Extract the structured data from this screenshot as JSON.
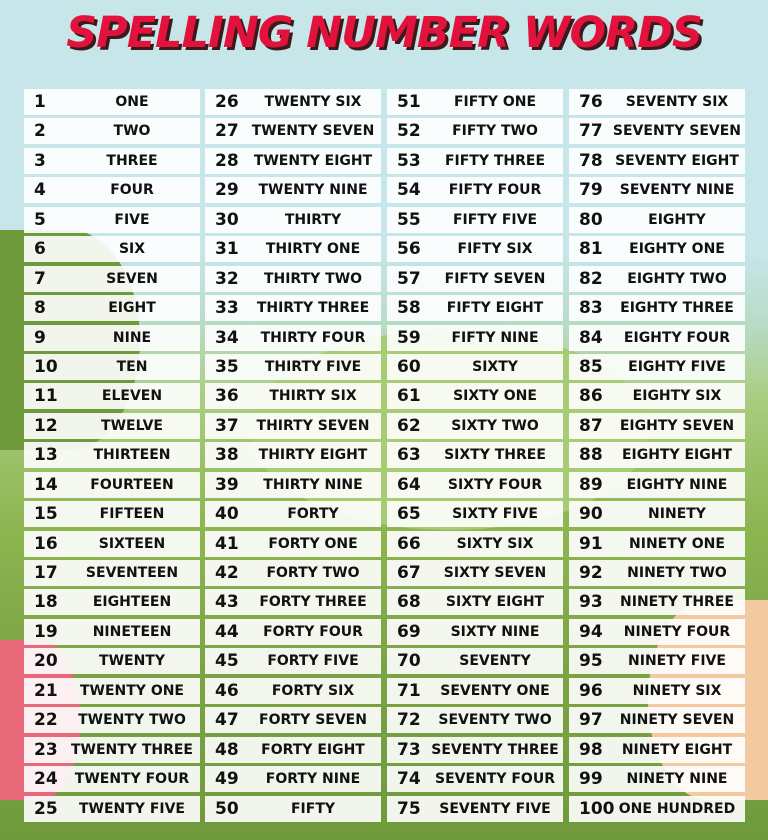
{
  "title": "SPELLING NUMBER WORDS",
  "colors": {
    "title": "#e3123d",
    "sky": "#c6e6e9",
    "grass": "#7ba344",
    "cell": "#ffffff"
  },
  "columns": [
    [
      [
        "1",
        "ONE"
      ],
      [
        "2",
        "TWO"
      ],
      [
        "3",
        "THREE"
      ],
      [
        "4",
        "FOUR"
      ],
      [
        "5",
        "FIVE"
      ],
      [
        "6",
        "SIX"
      ],
      [
        "7",
        "SEVEN"
      ],
      [
        "8",
        "EIGHT"
      ],
      [
        "9",
        "NINE"
      ],
      [
        "10",
        "TEN"
      ],
      [
        "11",
        "ELEVEN"
      ],
      [
        "12",
        "TWELVE"
      ],
      [
        "13",
        "THIRTEEN"
      ],
      [
        "14",
        "FOURTEEN"
      ],
      [
        "15",
        "FIFTEEN"
      ],
      [
        "16",
        "SIXTEEN"
      ],
      [
        "17",
        "SEVENTEEN"
      ],
      [
        "18",
        "EIGHTEEN"
      ],
      [
        "19",
        "NINETEEN"
      ],
      [
        "20",
        "TWENTY"
      ],
      [
        "21",
        "TWENTY ONE"
      ],
      [
        "22",
        "TWENTY TWO"
      ],
      [
        "23",
        "TWENTY THREE"
      ],
      [
        "24",
        "TWENTY FOUR"
      ],
      [
        "25",
        "TWENTY FIVE"
      ]
    ],
    [
      [
        "26",
        "TWENTY SIX"
      ],
      [
        "27",
        "TWENTY SEVEN"
      ],
      [
        "28",
        "TWENTY EIGHT"
      ],
      [
        "29",
        "TWENTY NINE"
      ],
      [
        "30",
        "THIRTY"
      ],
      [
        "31",
        "THIRTY ONE"
      ],
      [
        "32",
        "THIRTY TWO"
      ],
      [
        "33",
        "THIRTY THREE"
      ],
      [
        "34",
        "THIRTY FOUR"
      ],
      [
        "35",
        "THIRTY FIVE"
      ],
      [
        "36",
        "THIRTY SIX"
      ],
      [
        "37",
        "THIRTY SEVEN"
      ],
      [
        "38",
        "THIRTY EIGHT"
      ],
      [
        "39",
        "THIRTY NINE"
      ],
      [
        "40",
        "FORTY"
      ],
      [
        "41",
        "FORTY ONE"
      ],
      [
        "42",
        "FORTY TWO"
      ],
      [
        "43",
        "FORTY THREE"
      ],
      [
        "44",
        "FORTY FOUR"
      ],
      [
        "45",
        "FORTY FIVE"
      ],
      [
        "46",
        "FORTY SIX"
      ],
      [
        "47",
        "FORTY SEVEN"
      ],
      [
        "48",
        "FORTY EIGHT"
      ],
      [
        "49",
        "FORTY NINE"
      ],
      [
        "50",
        "FIFTY"
      ]
    ],
    [
      [
        "51",
        "FIFTY ONE"
      ],
      [
        "52",
        "FIFTY TWO"
      ],
      [
        "53",
        "FIFTY THREE"
      ],
      [
        "54",
        "FIFTY FOUR"
      ],
      [
        "55",
        "FIFTY FIVE"
      ],
      [
        "56",
        "FIFTY SIX"
      ],
      [
        "57",
        "FIFTY SEVEN"
      ],
      [
        "58",
        "FIFTY EIGHT"
      ],
      [
        "59",
        "FIFTY NINE"
      ],
      [
        "60",
        "SIXTY"
      ],
      [
        "61",
        "SIXTY ONE"
      ],
      [
        "62",
        "SIXTY TWO"
      ],
      [
        "63",
        "SIXTY THREE"
      ],
      [
        "64",
        "SIXTY FOUR"
      ],
      [
        "65",
        "SIXTY FIVE"
      ],
      [
        "66",
        "SIXTY SIX"
      ],
      [
        "67",
        "SIXTY SEVEN"
      ],
      [
        "68",
        "SIXTY EIGHT"
      ],
      [
        "69",
        "SIXTY NINE"
      ],
      [
        "70",
        "SEVENTY"
      ],
      [
        "71",
        "SEVENTY ONE"
      ],
      [
        "72",
        "SEVENTY TWO"
      ],
      [
        "73",
        "SEVENTY THREE"
      ],
      [
        "74",
        "SEVENTY FOUR"
      ],
      [
        "75",
        "SEVENTY FIVE"
      ]
    ],
    [
      [
        "76",
        "SEVENTY SIX"
      ],
      [
        "77",
        "SEVENTY SEVEN"
      ],
      [
        "78",
        "SEVENTY EIGHT"
      ],
      [
        "79",
        "SEVENTY NINE"
      ],
      [
        "80",
        "EIGHTY"
      ],
      [
        "81",
        "EIGHTY ONE"
      ],
      [
        "82",
        "EIGHTY TWO"
      ],
      [
        "83",
        "EIGHTY THREE"
      ],
      [
        "84",
        "EIGHTY FOUR"
      ],
      [
        "85",
        "EIGHTY FIVE"
      ],
      [
        "86",
        "EIGHTY SIX"
      ],
      [
        "87",
        "EIGHTY SEVEN"
      ],
      [
        "88",
        "EIGHTY EIGHT"
      ],
      [
        "89",
        "EIGHTY NINE"
      ],
      [
        "90",
        "NINETY"
      ],
      [
        "91",
        "NINETY ONE"
      ],
      [
        "92",
        "NINETY TWO"
      ],
      [
        "93",
        "NINETY THREE"
      ],
      [
        "94",
        "NINETY FOUR"
      ],
      [
        "95",
        "NINETY FIVE"
      ],
      [
        "96",
        "NINETY SIX"
      ],
      [
        "97",
        "NINETY SEVEN"
      ],
      [
        "98",
        "NINETY EIGHT"
      ],
      [
        "99",
        "NINETY NINE"
      ],
      [
        "100",
        "ONE HUNDRED"
      ]
    ]
  ]
}
